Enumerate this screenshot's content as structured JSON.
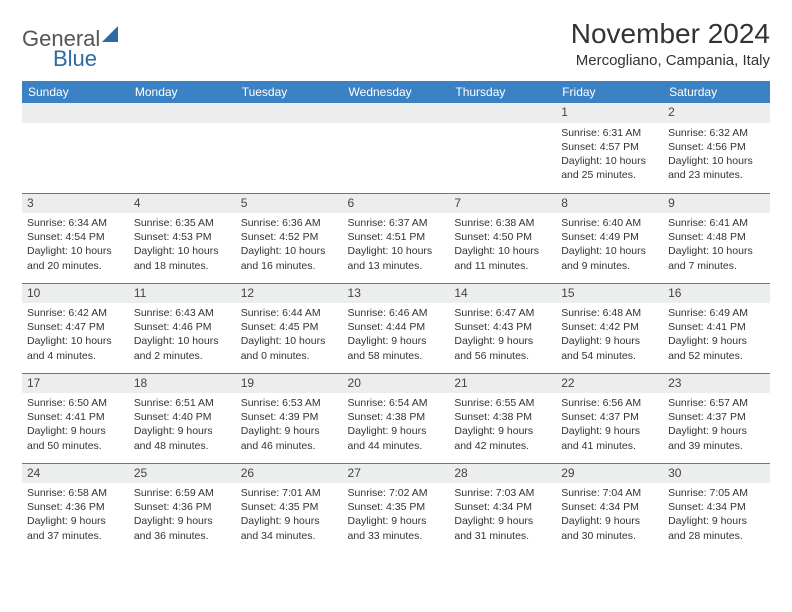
{
  "brand": {
    "part1": "General",
    "part2": "Blue"
  },
  "colors": {
    "header_bg": "#3b82c4",
    "header_text": "#ffffff",
    "daynum_bg": "#eceded",
    "row_divider": "#3b82c4",
    "brand_blue": "#2d6aa3"
  },
  "title": "November 2024",
  "location": "Mercogliano, Campania, Italy",
  "day_headers": [
    "Sunday",
    "Monday",
    "Tuesday",
    "Wednesday",
    "Thursday",
    "Friday",
    "Saturday"
  ],
  "weeks": [
    [
      {
        "n": "",
        "sr": "",
        "ss": "",
        "dl": ""
      },
      {
        "n": "",
        "sr": "",
        "ss": "",
        "dl": ""
      },
      {
        "n": "",
        "sr": "",
        "ss": "",
        "dl": ""
      },
      {
        "n": "",
        "sr": "",
        "ss": "",
        "dl": ""
      },
      {
        "n": "",
        "sr": "",
        "ss": "",
        "dl": ""
      },
      {
        "n": "1",
        "sr": "Sunrise: 6:31 AM",
        "ss": "Sunset: 4:57 PM",
        "dl": "Daylight: 10 hours and 25 minutes."
      },
      {
        "n": "2",
        "sr": "Sunrise: 6:32 AM",
        "ss": "Sunset: 4:56 PM",
        "dl": "Daylight: 10 hours and 23 minutes."
      }
    ],
    [
      {
        "n": "3",
        "sr": "Sunrise: 6:34 AM",
        "ss": "Sunset: 4:54 PM",
        "dl": "Daylight: 10 hours and 20 minutes."
      },
      {
        "n": "4",
        "sr": "Sunrise: 6:35 AM",
        "ss": "Sunset: 4:53 PM",
        "dl": "Daylight: 10 hours and 18 minutes."
      },
      {
        "n": "5",
        "sr": "Sunrise: 6:36 AM",
        "ss": "Sunset: 4:52 PM",
        "dl": "Daylight: 10 hours and 16 minutes."
      },
      {
        "n": "6",
        "sr": "Sunrise: 6:37 AM",
        "ss": "Sunset: 4:51 PM",
        "dl": "Daylight: 10 hours and 13 minutes."
      },
      {
        "n": "7",
        "sr": "Sunrise: 6:38 AM",
        "ss": "Sunset: 4:50 PM",
        "dl": "Daylight: 10 hours and 11 minutes."
      },
      {
        "n": "8",
        "sr": "Sunrise: 6:40 AM",
        "ss": "Sunset: 4:49 PM",
        "dl": "Daylight: 10 hours and 9 minutes."
      },
      {
        "n": "9",
        "sr": "Sunrise: 6:41 AM",
        "ss": "Sunset: 4:48 PM",
        "dl": "Daylight: 10 hours and 7 minutes."
      }
    ],
    [
      {
        "n": "10",
        "sr": "Sunrise: 6:42 AM",
        "ss": "Sunset: 4:47 PM",
        "dl": "Daylight: 10 hours and 4 minutes."
      },
      {
        "n": "11",
        "sr": "Sunrise: 6:43 AM",
        "ss": "Sunset: 4:46 PM",
        "dl": "Daylight: 10 hours and 2 minutes."
      },
      {
        "n": "12",
        "sr": "Sunrise: 6:44 AM",
        "ss": "Sunset: 4:45 PM",
        "dl": "Daylight: 10 hours and 0 minutes."
      },
      {
        "n": "13",
        "sr": "Sunrise: 6:46 AM",
        "ss": "Sunset: 4:44 PM",
        "dl": "Daylight: 9 hours and 58 minutes."
      },
      {
        "n": "14",
        "sr": "Sunrise: 6:47 AM",
        "ss": "Sunset: 4:43 PM",
        "dl": "Daylight: 9 hours and 56 minutes."
      },
      {
        "n": "15",
        "sr": "Sunrise: 6:48 AM",
        "ss": "Sunset: 4:42 PM",
        "dl": "Daylight: 9 hours and 54 minutes."
      },
      {
        "n": "16",
        "sr": "Sunrise: 6:49 AM",
        "ss": "Sunset: 4:41 PM",
        "dl": "Daylight: 9 hours and 52 minutes."
      }
    ],
    [
      {
        "n": "17",
        "sr": "Sunrise: 6:50 AM",
        "ss": "Sunset: 4:41 PM",
        "dl": "Daylight: 9 hours and 50 minutes."
      },
      {
        "n": "18",
        "sr": "Sunrise: 6:51 AM",
        "ss": "Sunset: 4:40 PM",
        "dl": "Daylight: 9 hours and 48 minutes."
      },
      {
        "n": "19",
        "sr": "Sunrise: 6:53 AM",
        "ss": "Sunset: 4:39 PM",
        "dl": "Daylight: 9 hours and 46 minutes."
      },
      {
        "n": "20",
        "sr": "Sunrise: 6:54 AM",
        "ss": "Sunset: 4:38 PM",
        "dl": "Daylight: 9 hours and 44 minutes."
      },
      {
        "n": "21",
        "sr": "Sunrise: 6:55 AM",
        "ss": "Sunset: 4:38 PM",
        "dl": "Daylight: 9 hours and 42 minutes."
      },
      {
        "n": "22",
        "sr": "Sunrise: 6:56 AM",
        "ss": "Sunset: 4:37 PM",
        "dl": "Daylight: 9 hours and 41 minutes."
      },
      {
        "n": "23",
        "sr": "Sunrise: 6:57 AM",
        "ss": "Sunset: 4:37 PM",
        "dl": "Daylight: 9 hours and 39 minutes."
      }
    ],
    [
      {
        "n": "24",
        "sr": "Sunrise: 6:58 AM",
        "ss": "Sunset: 4:36 PM",
        "dl": "Daylight: 9 hours and 37 minutes."
      },
      {
        "n": "25",
        "sr": "Sunrise: 6:59 AM",
        "ss": "Sunset: 4:36 PM",
        "dl": "Daylight: 9 hours and 36 minutes."
      },
      {
        "n": "26",
        "sr": "Sunrise: 7:01 AM",
        "ss": "Sunset: 4:35 PM",
        "dl": "Daylight: 9 hours and 34 minutes."
      },
      {
        "n": "27",
        "sr": "Sunrise: 7:02 AM",
        "ss": "Sunset: 4:35 PM",
        "dl": "Daylight: 9 hours and 33 minutes."
      },
      {
        "n": "28",
        "sr": "Sunrise: 7:03 AM",
        "ss": "Sunset: 4:34 PM",
        "dl": "Daylight: 9 hours and 31 minutes."
      },
      {
        "n": "29",
        "sr": "Sunrise: 7:04 AM",
        "ss": "Sunset: 4:34 PM",
        "dl": "Daylight: 9 hours and 30 minutes."
      },
      {
        "n": "30",
        "sr": "Sunrise: 7:05 AM",
        "ss": "Sunset: 4:34 PM",
        "dl": "Daylight: 9 hours and 28 minutes."
      }
    ]
  ]
}
